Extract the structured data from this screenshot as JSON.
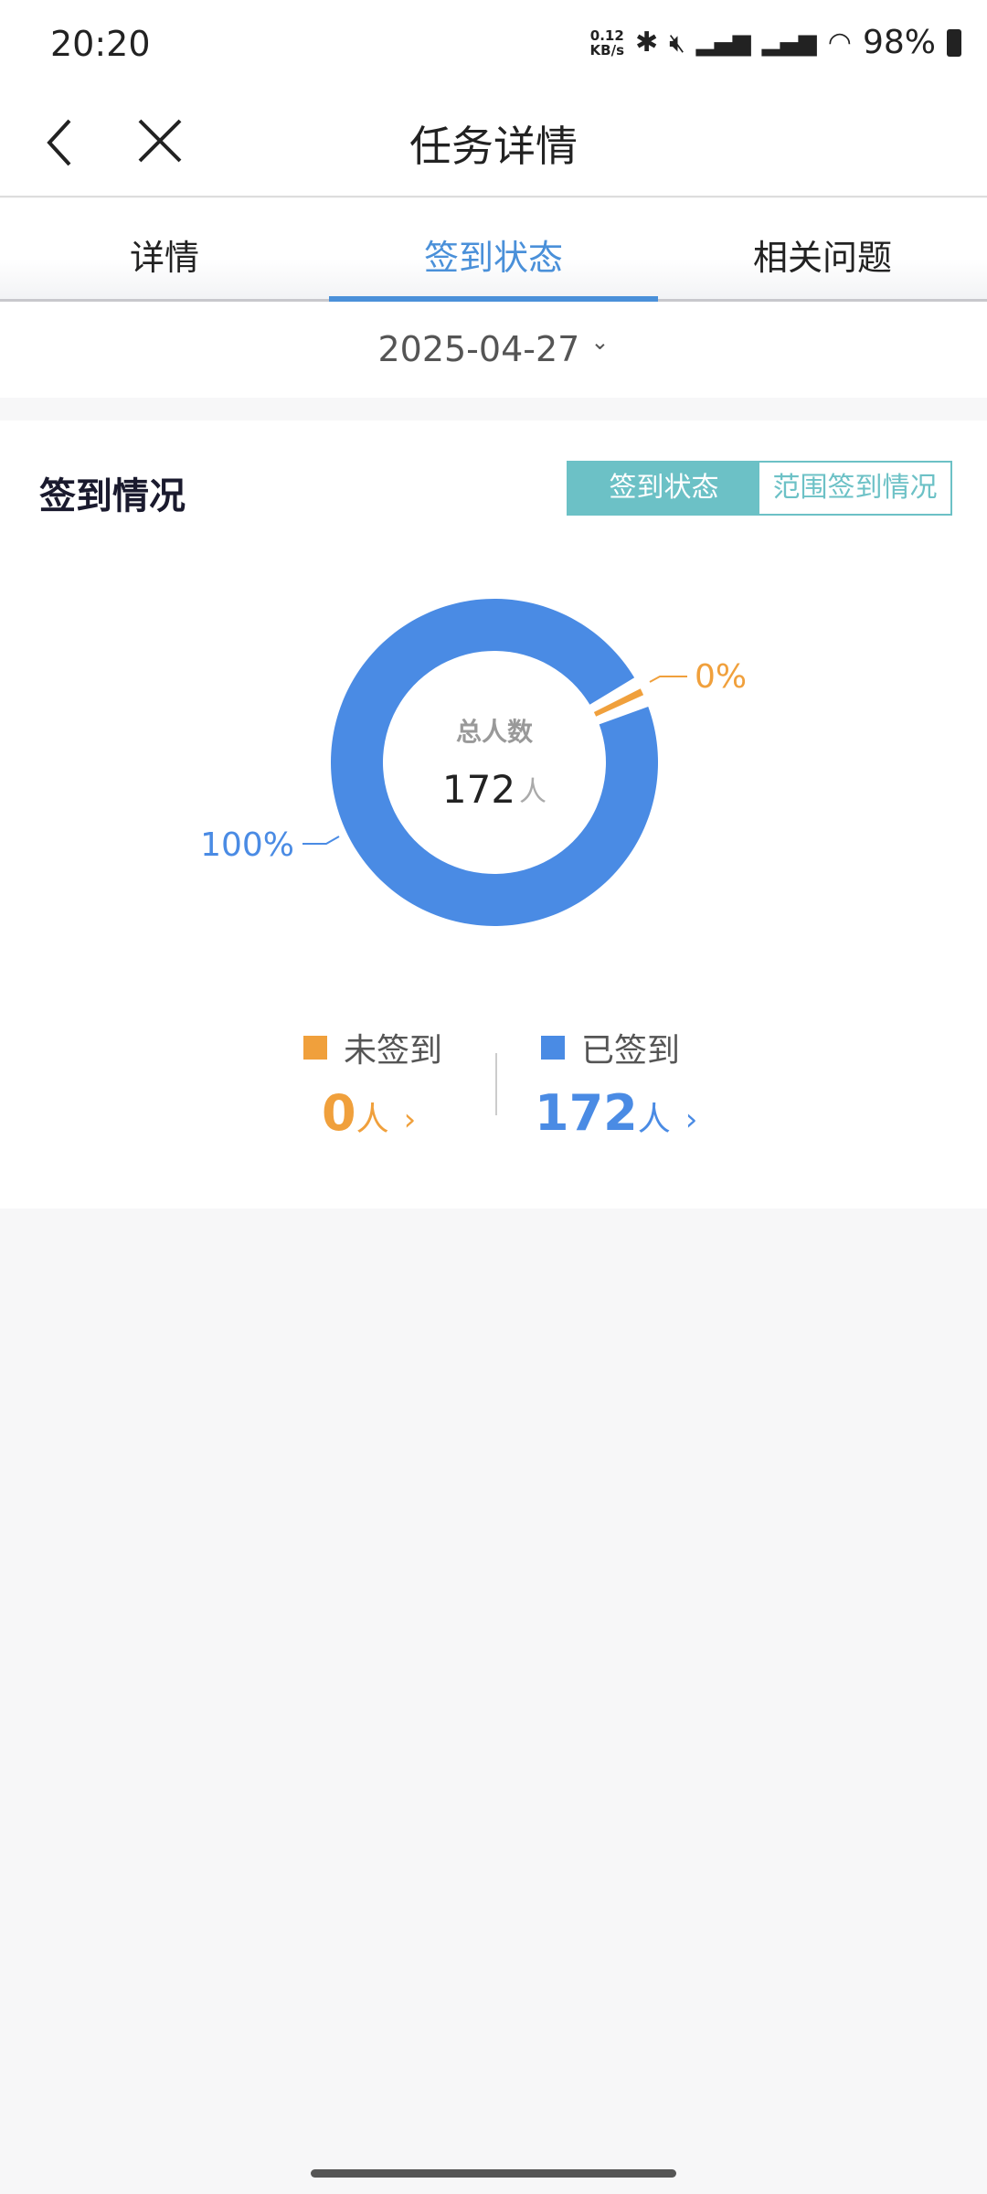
{
  "status_bar": {
    "time": "20:20",
    "speed": "0.12",
    "speed_unit": "KB/s",
    "battery": "98%"
  },
  "header": {
    "title": "任务详情",
    "back_icon": "chevron-left-icon",
    "close_icon": "close-icon"
  },
  "tabs": [
    {
      "label": "详情"
    },
    {
      "label": "签到状态",
      "active": true
    },
    {
      "label": "相关问题"
    }
  ],
  "date": {
    "value": "2025-04-27",
    "icon": "chevron-down-icon"
  },
  "card": {
    "title": "签到情况",
    "toggle": [
      "签到状态",
      "范围签到情况"
    ],
    "toggle_selected": "签到状态"
  },
  "chart_data": {
    "type": "pie",
    "donut": true,
    "center_label": "总人数",
    "center_value": "172",
    "center_unit": "人",
    "slices": [
      {
        "name": "未签到",
        "value": 0,
        "percent_label": "0%",
        "color": "#f0a03c"
      },
      {
        "name": "已签到",
        "value": 172,
        "percent_label": "100%",
        "color": "#4a8be4"
      }
    ]
  },
  "legend": [
    {
      "label": "未签到",
      "count": "0",
      "unit": "人",
      "color": "#f0a03c"
    },
    {
      "label": "已签到",
      "count": "172",
      "unit": "人",
      "color": "#4a8be4"
    }
  ]
}
